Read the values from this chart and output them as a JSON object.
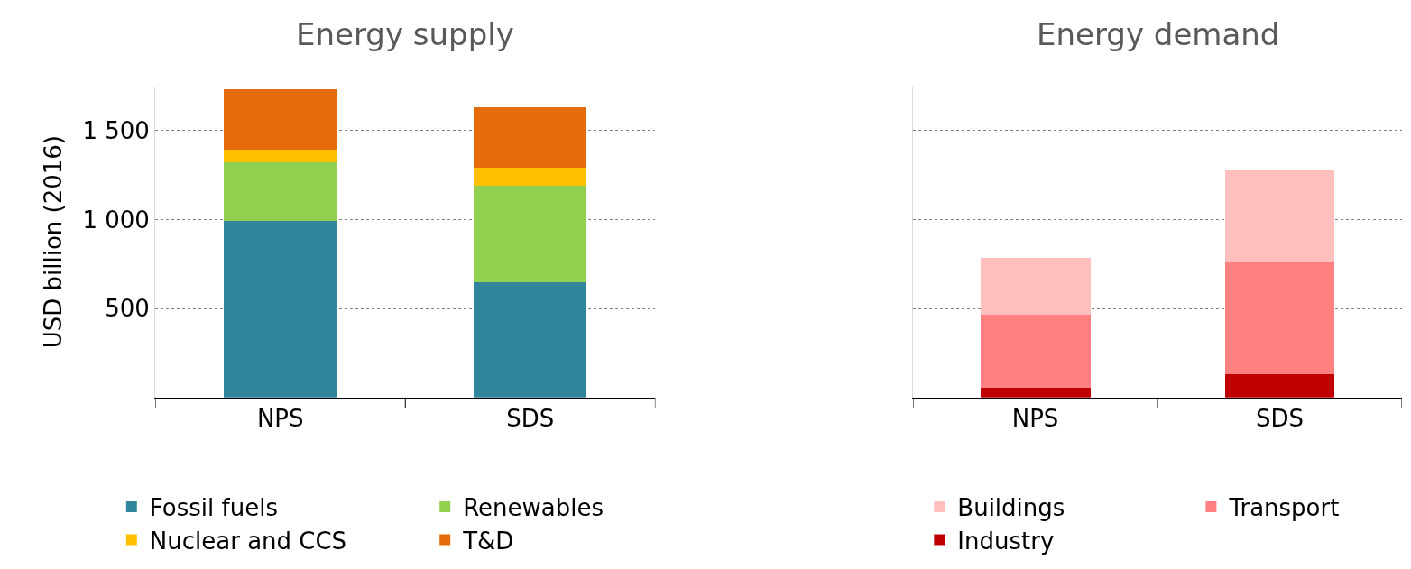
{
  "chart_data": [
    {
      "type": "bar",
      "title": "Energy supply",
      "ylabel": "USD billion (2016)",
      "categories": [
        "NPS",
        "SDS"
      ],
      "stacked": true,
      "series": [
        {
          "name": "Fossil fuels",
          "color": "#31869b",
          "values": [
            990,
            650
          ]
        },
        {
          "name": "Renewables",
          "color": "#92d050",
          "values": [
            330,
            540
          ]
        },
        {
          "name": "Nuclear and CCS",
          "color": "#ffc000",
          "values": [
            75,
            100
          ]
        },
        {
          "name": "T&D",
          "color": "#e46c0a",
          "values": [
            335,
            340
          ]
        }
      ],
      "ylim": [
        0,
        1750
      ],
      "yticks": [
        {
          "value": 500,
          "label": "500"
        },
        {
          "value": 1000,
          "label": "1 000"
        },
        {
          "value": 1500,
          "label": "1 500"
        }
      ],
      "grid": "y",
      "legend": "bottom"
    },
    {
      "type": "bar",
      "title": "Energy demand",
      "categories": [
        "NPS",
        "SDS"
      ],
      "stacked": true,
      "series": [
        {
          "name": "Industry",
          "color": "#c00000",
          "values": [
            55,
            130
          ]
        },
        {
          "name": "Transport",
          "color": "#ff8080",
          "values": [
            410,
            635
          ]
        },
        {
          "name": "Buildings",
          "color": "#ffbfbf",
          "values": [
            320,
            510
          ]
        }
      ],
      "ylim": [
        0,
        1750
      ],
      "yticks": [
        500,
        1000,
        1500
      ],
      "tick_labels": "x",
      "grid": "y",
      "legend": "bottom"
    }
  ]
}
